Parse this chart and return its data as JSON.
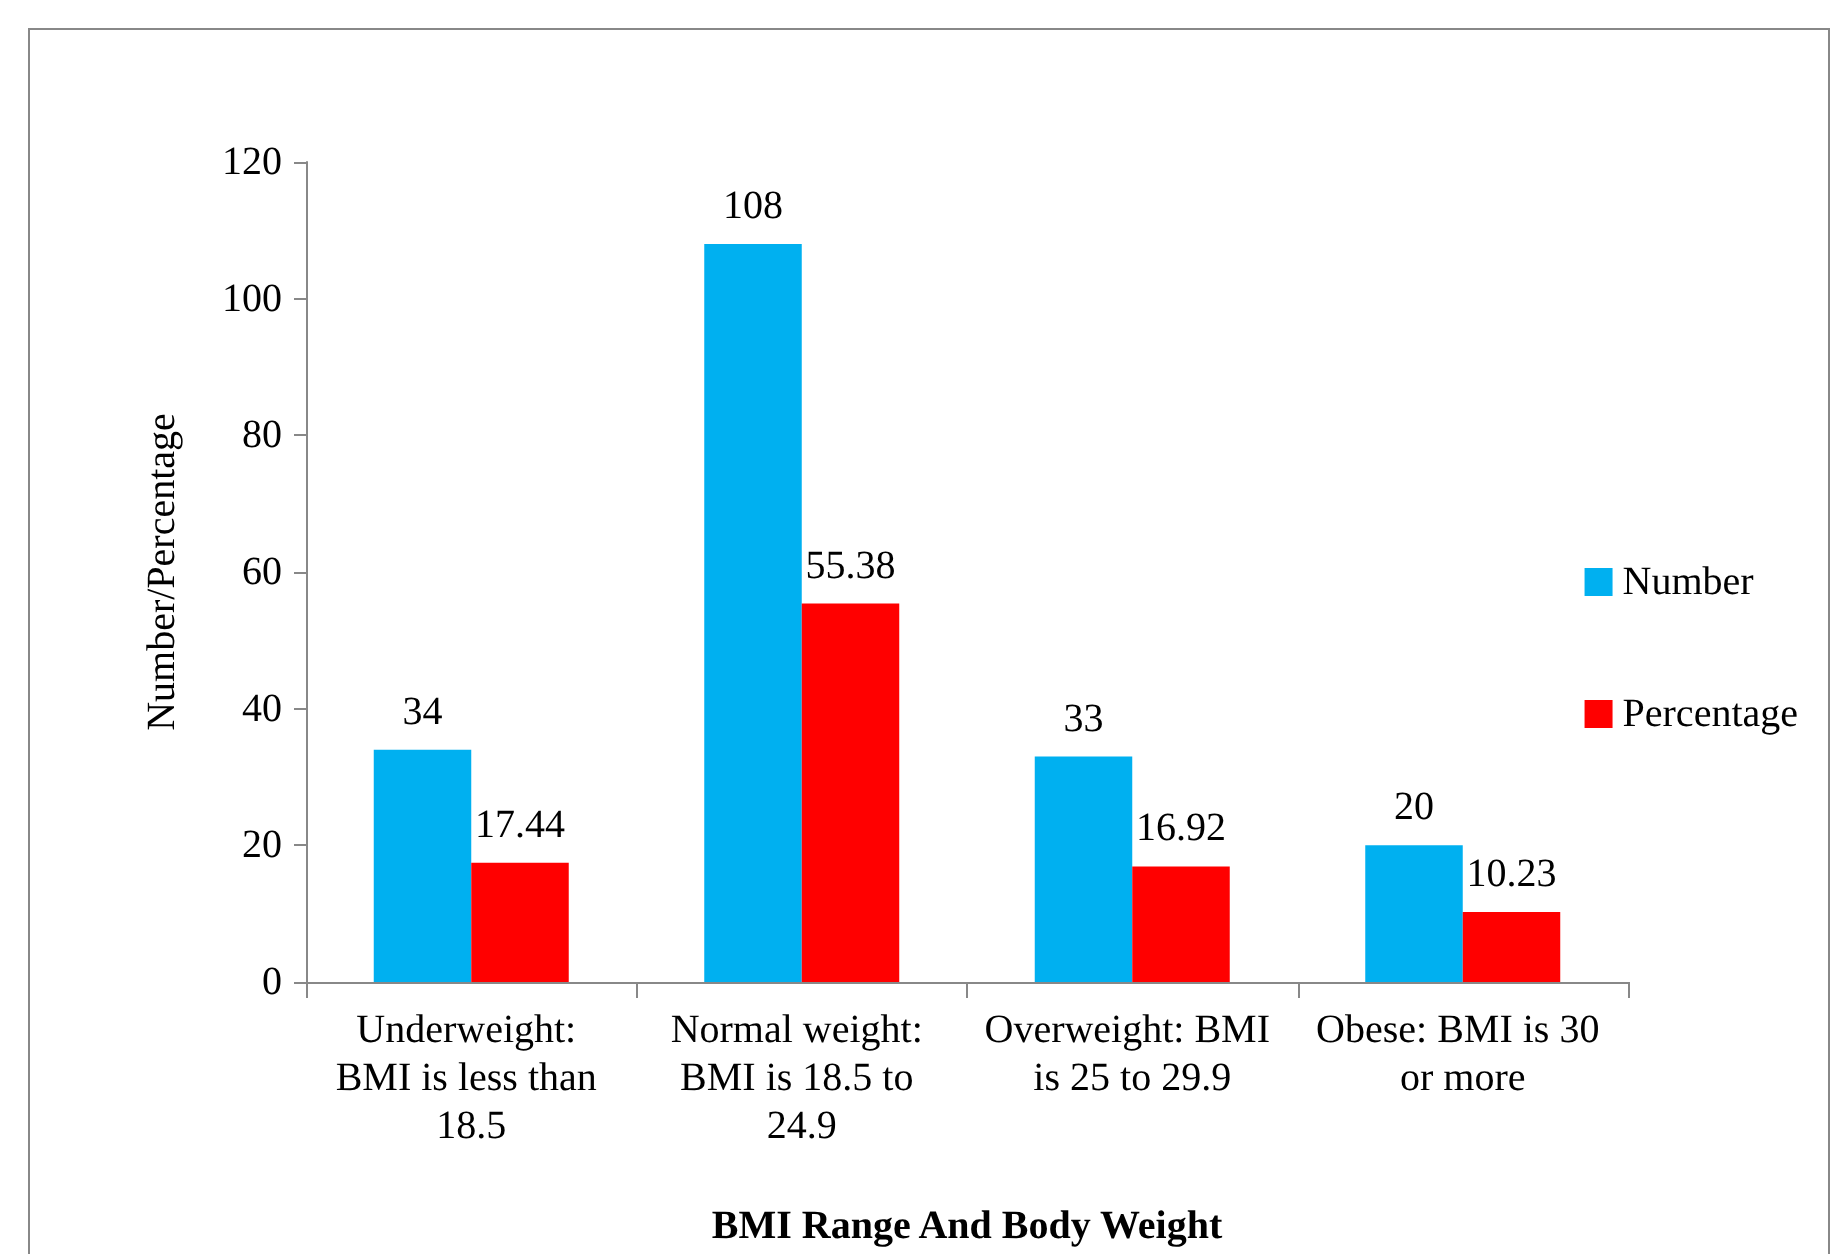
{
  "chart_data": {
    "type": "bar",
    "xlabel": "BMI Range And Body Weight",
    "ylabel": "Number/Percentage",
    "categories": [
      "Underweight: BMI is less than 18.5",
      "Normal weight: BMI is 18.5 to 24.9",
      "Overweight: BMI is 25 to 29.9",
      "Obese: BMI is 30 or more"
    ],
    "series": [
      {
        "name": "Number",
        "color": "#00b0f0",
        "values": [
          34,
          108,
          33,
          20
        ]
      },
      {
        "name": "Percentage",
        "color": "#ff0000",
        "values": [
          17.44,
          55.38,
          16.92,
          10.23
        ]
      }
    ],
    "ylim": [
      0,
      120
    ],
    "yticks": [
      0,
      20,
      40,
      60,
      80,
      100,
      120
    ],
    "grid": false,
    "legend": "right",
    "data_labels": true
  }
}
